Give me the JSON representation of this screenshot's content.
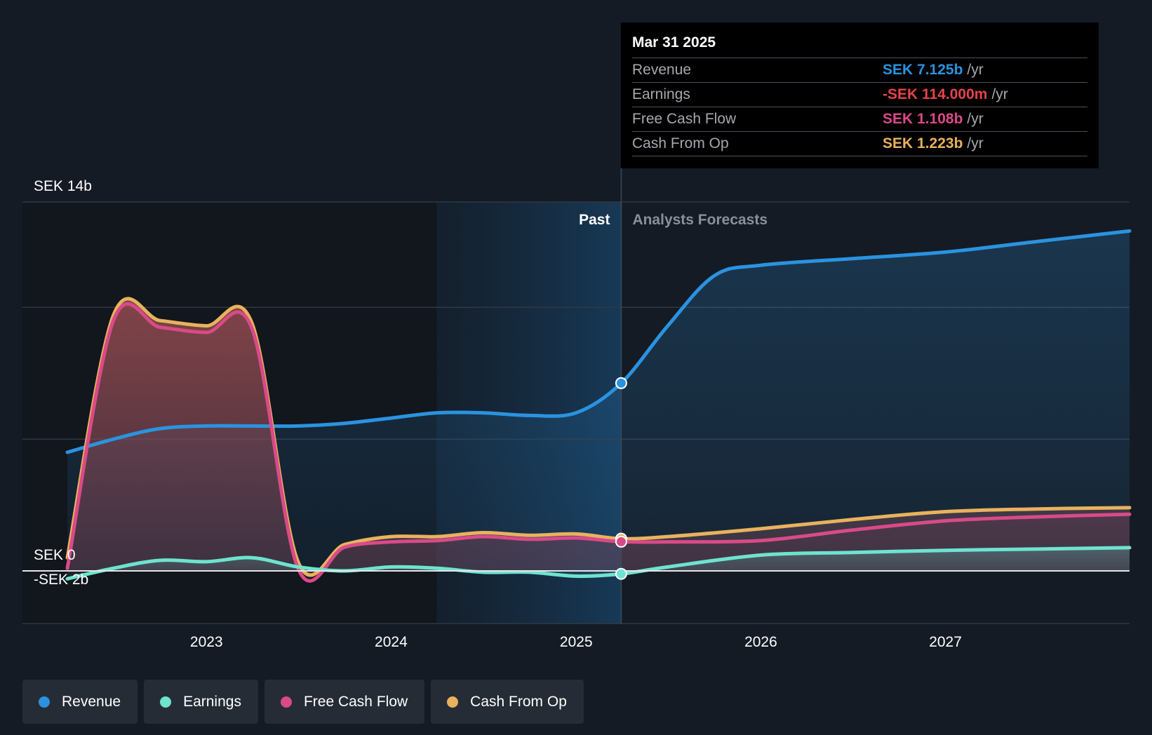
{
  "tooltip": {
    "date": "Mar 31 2025",
    "rows": [
      {
        "label": "Revenue",
        "value": "SEK 7.125b",
        "unit": "/yr",
        "color": "#2a93e0"
      },
      {
        "label": "Earnings",
        "value": "-SEK 114.000m",
        "unit": "/yr",
        "color": "#e5434b"
      },
      {
        "label": "Free Cash Flow",
        "value": "SEK 1.108b",
        "unit": "/yr",
        "color": "#d94a88"
      },
      {
        "label": "Cash From Op",
        "value": "SEK 1.223b",
        "unit": "/yr",
        "color": "#e8b25e"
      }
    ]
  },
  "legend": [
    {
      "label": "Revenue",
      "color": "#2a93e0"
    },
    {
      "label": "Earnings",
      "color": "#6ee3cf"
    },
    {
      "label": "Free Cash Flow",
      "color": "#d94a88"
    },
    {
      "label": "Cash From Op",
      "color": "#e8b25e"
    }
  ],
  "chart_data": {
    "type": "area",
    "y_unit": "SEK b",
    "ylim": [
      -2,
      14
    ],
    "xlim": [
      "2022-04-01",
      "2027-12-31"
    ],
    "y_tick_labels": [
      {
        "value": 14,
        "label": "SEK 14b"
      },
      {
        "value": 0,
        "label": "SEK 0"
      },
      {
        "value": -2,
        "label": "-SEK 2b"
      }
    ],
    "gridlines": [
      14,
      10,
      5,
      0,
      -2
    ],
    "x_tick_labels": [
      {
        "date": "2023-01-01",
        "label": "2023"
      },
      {
        "date": "2024-01-01",
        "label": "2024"
      },
      {
        "date": "2025-01-01",
        "label": "2025"
      },
      {
        "date": "2026-01-01",
        "label": "2026"
      },
      {
        "date": "2027-01-01",
        "label": "2027"
      }
    ],
    "past_label": "Past",
    "forecast_label": "Analysts Forecasts",
    "divider_date": "2025-03-31",
    "shaded_past_start": "2024-03-31",
    "series": [
      {
        "name": "Revenue",
        "color": "#2a93e0",
        "fill": true,
        "points": [
          [
            "2022-04-01",
            4.5
          ],
          [
            "2022-07-01",
            5.0
          ],
          [
            "2022-10-01",
            5.4
          ],
          [
            "2023-01-01",
            5.5
          ],
          [
            "2023-04-01",
            5.5
          ],
          [
            "2023-07-01",
            5.5
          ],
          [
            "2023-10-01",
            5.6
          ],
          [
            "2024-01-01",
            5.8
          ],
          [
            "2024-04-01",
            6.0
          ],
          [
            "2024-07-01",
            6.0
          ],
          [
            "2024-10-01",
            5.9
          ],
          [
            "2025-01-01",
            6.0
          ],
          [
            "2025-03-31",
            7.125
          ],
          [
            "2025-07-01",
            9.3
          ],
          [
            "2025-10-01",
            11.2
          ],
          [
            "2026-01-01",
            11.6
          ],
          [
            "2026-07-01",
            11.85
          ],
          [
            "2027-01-01",
            12.1
          ],
          [
            "2027-07-01",
            12.5
          ],
          [
            "2027-12-31",
            12.9
          ]
        ]
      },
      {
        "name": "Cash From Op",
        "color": "#e8b25e",
        "fill": true,
        "points": [
          [
            "2022-04-01",
            0.5
          ],
          [
            "2022-07-01",
            9.7
          ],
          [
            "2022-10-01",
            9.5
          ],
          [
            "2023-01-01",
            9.3
          ],
          [
            "2023-04-01",
            9.4
          ],
          [
            "2023-07-01",
            0.35
          ],
          [
            "2023-10-01",
            1.0
          ],
          [
            "2024-01-01",
            1.3
          ],
          [
            "2024-04-01",
            1.3
          ],
          [
            "2024-07-01",
            1.45
          ],
          [
            "2024-10-01",
            1.35
          ],
          [
            "2025-01-01",
            1.4
          ],
          [
            "2025-03-31",
            1.223
          ],
          [
            "2025-07-01",
            1.3
          ],
          [
            "2026-01-01",
            1.6
          ],
          [
            "2026-07-01",
            1.95
          ],
          [
            "2027-01-01",
            2.25
          ],
          [
            "2027-07-01",
            2.35
          ],
          [
            "2027-12-31",
            2.4
          ]
        ]
      },
      {
        "name": "Free Cash Flow",
        "color": "#d94a88",
        "fill": true,
        "points": [
          [
            "2022-04-01",
            0.1
          ],
          [
            "2022-07-01",
            9.5
          ],
          [
            "2022-10-01",
            9.25
          ],
          [
            "2023-01-01",
            9.05
          ],
          [
            "2023-04-01",
            9.2
          ],
          [
            "2023-07-01",
            0.1
          ],
          [
            "2023-10-01",
            0.9
          ],
          [
            "2024-01-01",
            1.1
          ],
          [
            "2024-04-01",
            1.15
          ],
          [
            "2024-07-01",
            1.3
          ],
          [
            "2024-10-01",
            1.2
          ],
          [
            "2025-01-01",
            1.25
          ],
          [
            "2025-03-31",
            1.108
          ],
          [
            "2025-07-01",
            1.1
          ],
          [
            "2026-01-01",
            1.15
          ],
          [
            "2026-07-01",
            1.55
          ],
          [
            "2027-01-01",
            1.9
          ],
          [
            "2027-07-01",
            2.05
          ],
          [
            "2027-12-31",
            2.15
          ]
        ]
      },
      {
        "name": "Earnings",
        "color": "#6ee3cf",
        "fill": true,
        "points": [
          [
            "2022-04-01",
            -0.3
          ],
          [
            "2022-07-01",
            0.1
          ],
          [
            "2022-10-01",
            0.4
          ],
          [
            "2023-01-01",
            0.35
          ],
          [
            "2023-04-01",
            0.5
          ],
          [
            "2023-07-01",
            0.15
          ],
          [
            "2023-10-01",
            0.0
          ],
          [
            "2024-01-01",
            0.15
          ],
          [
            "2024-04-01",
            0.1
          ],
          [
            "2024-07-01",
            -0.05
          ],
          [
            "2024-10-01",
            -0.05
          ],
          [
            "2025-01-01",
            -0.2
          ],
          [
            "2025-03-31",
            -0.114
          ],
          [
            "2025-07-01",
            0.15
          ],
          [
            "2026-01-01",
            0.6
          ],
          [
            "2026-07-01",
            0.7
          ],
          [
            "2027-01-01",
            0.78
          ],
          [
            "2027-07-01",
            0.83
          ],
          [
            "2027-12-31",
            0.88
          ]
        ]
      }
    ],
    "highlight_date": "2025-03-31"
  }
}
